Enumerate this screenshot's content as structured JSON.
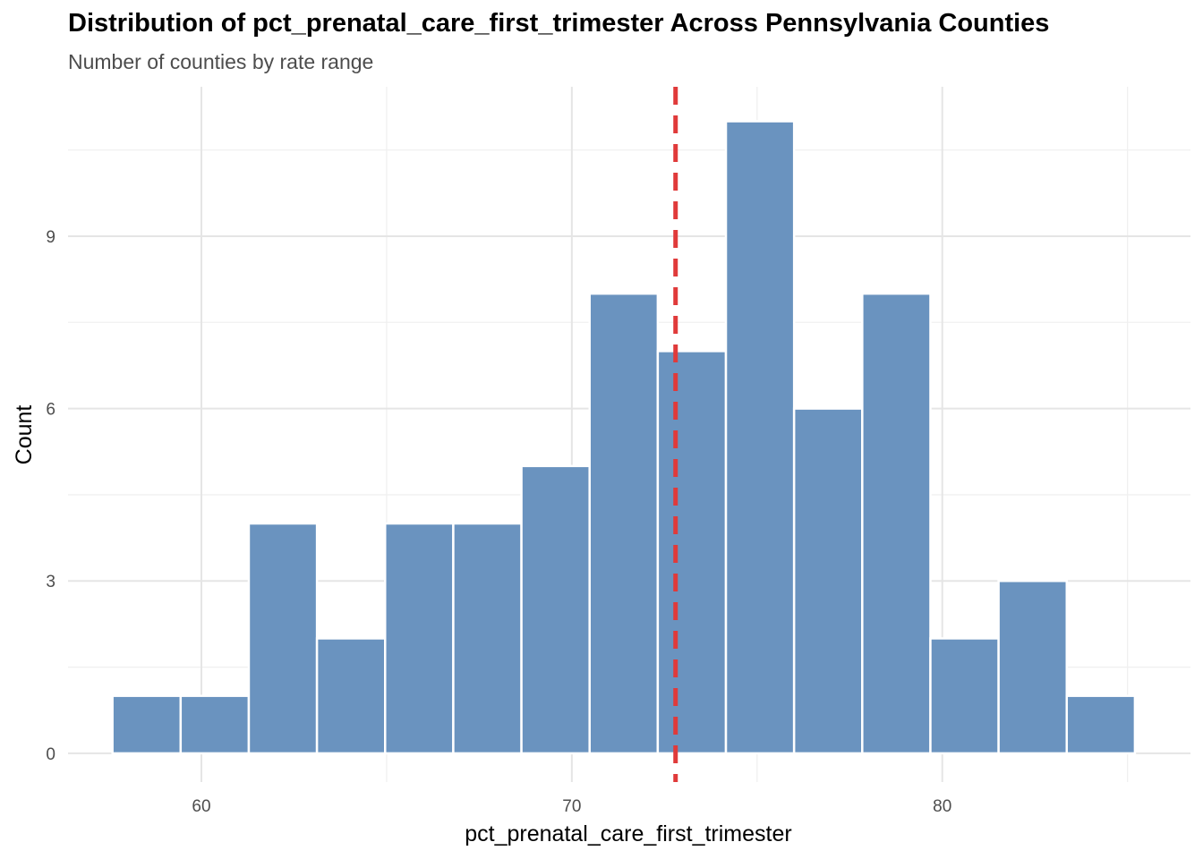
{
  "chart_data": {
    "type": "bar",
    "title": "Distribution of pct_prenatal_care_first_trimester Across Pennsylvania Counties",
    "subtitle": "Number of counties by rate range",
    "xlabel": "pct_prenatal_care_first_trimester",
    "ylabel": "Count",
    "xlim": [
      56.4,
      86.7
    ],
    "ylim": [
      -0.5,
      11.6
    ],
    "x_ticks": [
      60,
      70,
      80
    ],
    "y_ticks": [
      0,
      3,
      6,
      9
    ],
    "bin_width": 1.84,
    "bins": [
      {
        "x0": 57.6,
        "x1": 59.44,
        "count": 1
      },
      {
        "x0": 59.44,
        "x1": 61.28,
        "count": 1
      },
      {
        "x0": 61.28,
        "x1": 63.12,
        "count": 4
      },
      {
        "x0": 63.12,
        "x1": 64.96,
        "count": 2
      },
      {
        "x0": 64.96,
        "x1": 66.8,
        "count": 4
      },
      {
        "x0": 66.8,
        "x1": 68.64,
        "count": 4
      },
      {
        "x0": 68.64,
        "x1": 70.48,
        "count": 5
      },
      {
        "x0": 70.48,
        "x1": 72.32,
        "count": 8
      },
      {
        "x0": 72.32,
        "x1": 74.16,
        "count": 7
      },
      {
        "x0": 74.16,
        "x1": 76.0,
        "count": 11
      },
      {
        "x0": 76.0,
        "x1": 77.84,
        "count": 6
      },
      {
        "x0": 77.84,
        "x1": 79.68,
        "count": 8
      },
      {
        "x0": 79.68,
        "x1": 81.52,
        "count": 2
      },
      {
        "x0": 81.52,
        "x1": 83.36,
        "count": 3
      },
      {
        "x0": 83.36,
        "x1": 85.2,
        "count": 1
      }
    ],
    "reference_line": {
      "x": 72.8,
      "style": "dashed"
    },
    "grid": true,
    "colors": {
      "bar_fill": "#6A93BF",
      "bar_stroke": "#ffffff",
      "reference_line": "#E03A3A",
      "grid_major": "#E5E5E5",
      "grid_minor": "#F0F0F0"
    }
  }
}
